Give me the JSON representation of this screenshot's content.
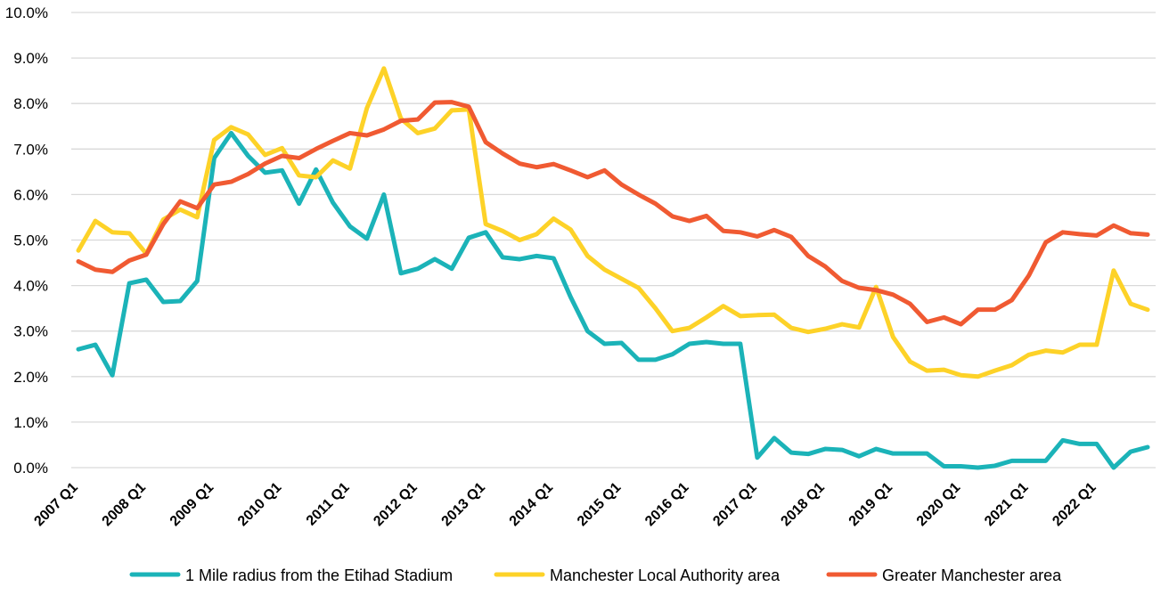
{
  "chart_data": {
    "type": "line",
    "title": "",
    "xlabel": "",
    "ylabel": "",
    "ylim": [
      0,
      10
    ],
    "y_unit": "%",
    "grid": "horizontal",
    "legend_position": "bottom",
    "yticks": [
      "0.0%",
      "1.0%",
      "2.0%",
      "3.0%",
      "4.0%",
      "5.0%",
      "6.0%",
      "7.0%",
      "8.0%",
      "9.0%",
      "10.0%"
    ],
    "xtick_labels": [
      "2007 Q1",
      "2008 Q1",
      "2009 Q1",
      "2010 Q1",
      "2011 Q1",
      "2012 Q1",
      "2013 Q1",
      "2014 Q1",
      "2015 Q1",
      "2016 Q1",
      "2017 Q1",
      "2018 Q1",
      "2019 Q1",
      "2020 Q1",
      "2021 Q1",
      "2022 Q1"
    ],
    "categories": [
      "2007 Q1",
      "2007 Q2",
      "2007 Q3",
      "2007 Q4",
      "2008 Q1",
      "2008 Q2",
      "2008 Q3",
      "2008 Q4",
      "2009 Q1",
      "2009 Q2",
      "2009 Q3",
      "2009 Q4",
      "2010 Q1",
      "2010 Q2",
      "2010 Q3",
      "2010 Q4",
      "2011 Q1",
      "2011 Q2",
      "2011 Q3",
      "2011 Q4",
      "2012 Q1",
      "2012 Q2",
      "2012 Q3",
      "2012 Q4",
      "2013 Q1",
      "2013 Q2",
      "2013 Q3",
      "2013 Q4",
      "2014 Q1",
      "2014 Q2",
      "2014 Q3",
      "2014 Q4",
      "2015 Q1",
      "2015 Q2",
      "2015 Q3",
      "2015 Q4",
      "2016 Q1",
      "2016 Q2",
      "2016 Q3",
      "2016 Q4",
      "2017 Q1",
      "2017 Q2",
      "2017 Q3",
      "2017 Q4",
      "2018 Q1",
      "2018 Q2",
      "2018 Q3",
      "2018 Q4",
      "2019 Q1",
      "2019 Q2",
      "2019 Q3",
      "2019 Q4",
      "2020 Q1",
      "2020 Q2",
      "2020 Q3",
      "2020 Q4",
      "2021 Q1",
      "2021 Q2",
      "2021 Q3",
      "2021 Q4",
      "2022 Q1",
      "2022 Q2",
      "2022 Q3",
      "2022 Q4"
    ],
    "series": [
      {
        "name": "1 Mile radius from the Etihad Stadium",
        "color": "#1bb3b8",
        "values": [
          2.6,
          2.7,
          2.03,
          4.05,
          4.13,
          3.64,
          3.66,
          4.1,
          6.8,
          7.35,
          6.85,
          6.48,
          6.53,
          5.8,
          6.55,
          5.82,
          5.3,
          5.03,
          6.0,
          4.27,
          4.37,
          4.58,
          4.37,
          5.05,
          5.17,
          4.62,
          4.58,
          4.65,
          4.6,
          3.75,
          3.0,
          2.72,
          2.74,
          2.37,
          2.37,
          2.49,
          2.72,
          2.76,
          2.72,
          2.72,
          0.22,
          0.65,
          0.33,
          0.3,
          0.41,
          0.39,
          0.25,
          0.41,
          0.31,
          0.31,
          0.31,
          0.03,
          0.03,
          0.0,
          0.04,
          0.15,
          0.15,
          0.15,
          0.6,
          0.52,
          0.52,
          0.0,
          0.35,
          0.45
        ]
      },
      {
        "name": "Manchester Local Authority area",
        "color": "#fdd228",
        "values": [
          4.77,
          5.42,
          5.17,
          5.15,
          4.7,
          5.45,
          5.67,
          5.5,
          7.2,
          7.48,
          7.32,
          6.87,
          7.02,
          6.42,
          6.38,
          6.75,
          6.57,
          7.9,
          8.77,
          7.67,
          7.35,
          7.45,
          7.85,
          7.87,
          5.35,
          5.2,
          5.0,
          5.13,
          5.47,
          5.23,
          4.65,
          4.35,
          4.15,
          3.95,
          3.5,
          3.0,
          3.07,
          3.3,
          3.55,
          3.33,
          3.35,
          3.36,
          3.07,
          2.98,
          3.05,
          3.15,
          3.08,
          3.97,
          2.87,
          2.33,
          2.13,
          2.15,
          2.03,
          2.0,
          2.13,
          2.25,
          2.48,
          2.57,
          2.53,
          2.7,
          2.7,
          4.33,
          3.6,
          3.47
        ]
      },
      {
        "name": "Greater Manchester area",
        "color": "#f05a32",
        "values": [
          4.53,
          4.35,
          4.3,
          4.55,
          4.68,
          5.35,
          5.85,
          5.7,
          6.22,
          6.28,
          6.45,
          6.68,
          6.85,
          6.8,
          7.0,
          7.18,
          7.35,
          7.3,
          7.43,
          7.62,
          7.65,
          8.02,
          8.03,
          7.93,
          7.15,
          6.9,
          6.68,
          6.6,
          6.67,
          6.53,
          6.38,
          6.53,
          6.22,
          6.0,
          5.8,
          5.52,
          5.42,
          5.53,
          5.2,
          5.17,
          5.08,
          5.22,
          5.07,
          4.65,
          4.42,
          4.1,
          3.95,
          3.9,
          3.8,
          3.6,
          3.2,
          3.3,
          3.15,
          3.47,
          3.47,
          3.68,
          4.22,
          4.95,
          5.17,
          5.13,
          5.1,
          5.32,
          5.15,
          5.12
        ]
      }
    ]
  }
}
